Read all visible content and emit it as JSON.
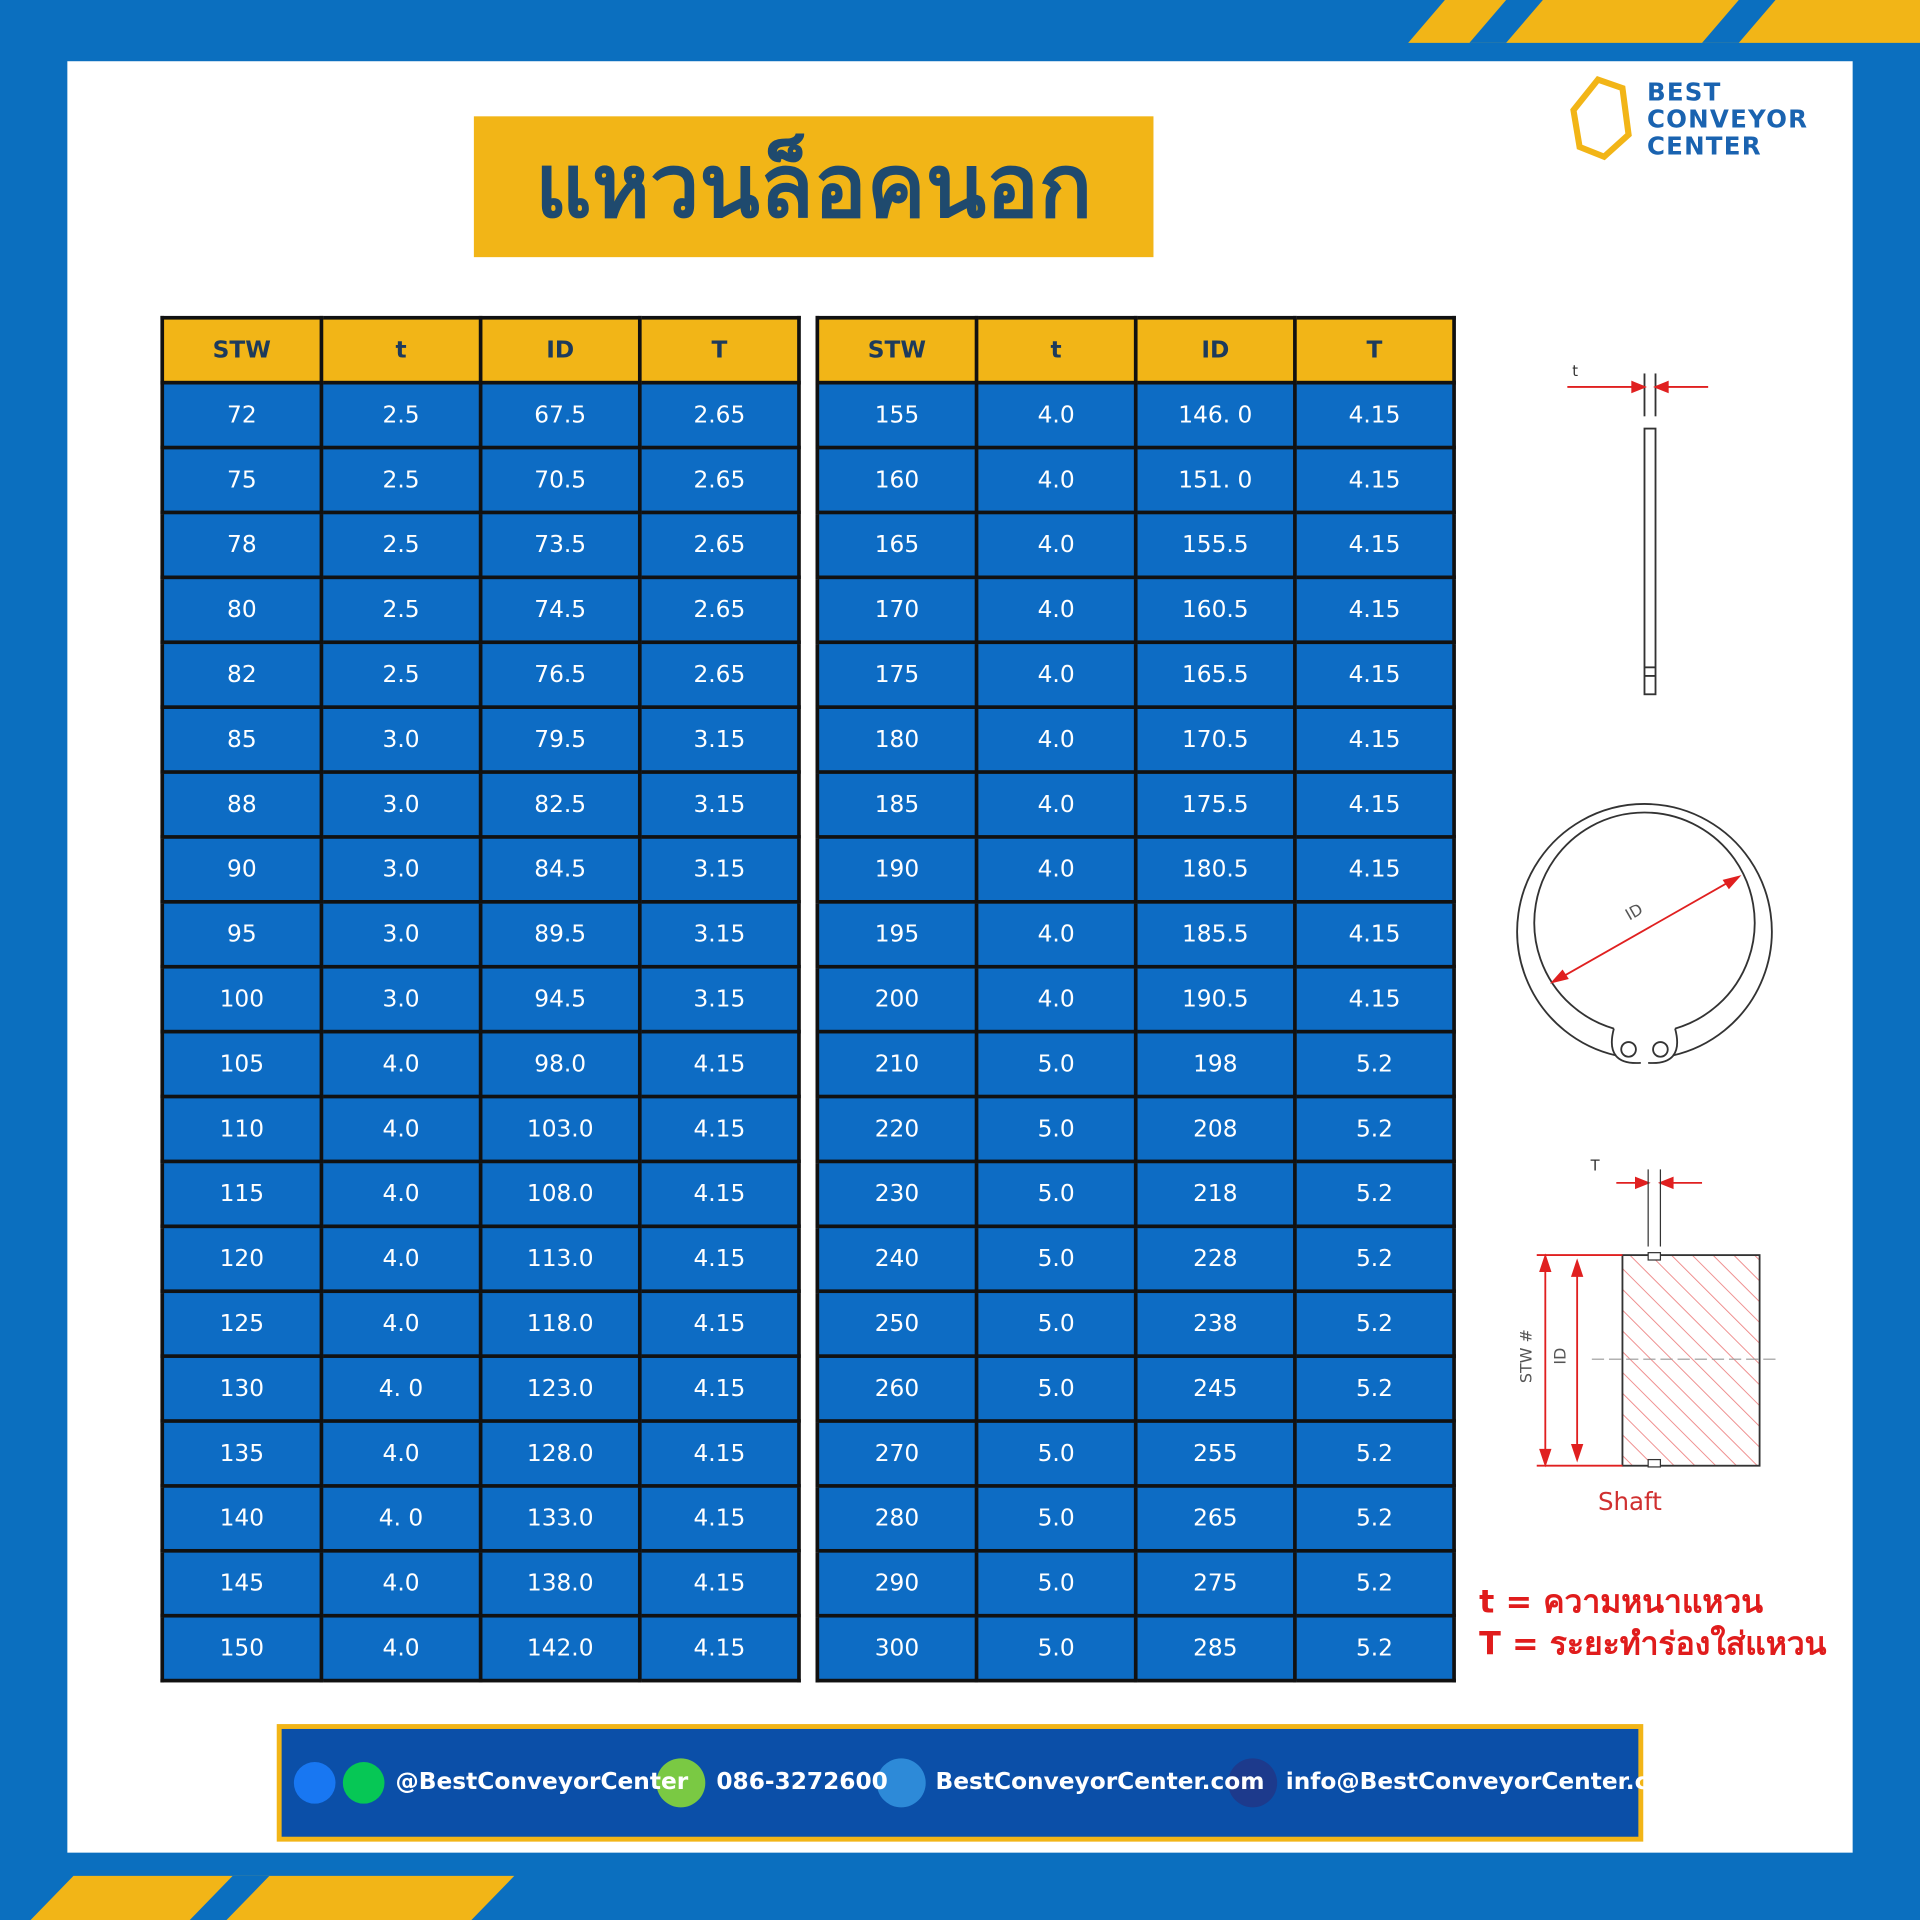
{
  "header": {
    "title": "แหวนล็อคนอก"
  },
  "logo": {
    "lines": [
      "BEST",
      "CONVEYOR",
      "CENTER"
    ]
  },
  "tables": [
    {
      "header": [
        "STW",
        "t",
        "ID",
        "T"
      ],
      "rows": [
        [
          "72",
          "2.5",
          "67.5",
          "2.65"
        ],
        [
          "75",
          "2.5",
          "70.5",
          "2.65"
        ],
        [
          "78",
          "2.5",
          "73.5",
          "2.65"
        ],
        [
          "80",
          "2.5",
          "74.5",
          "2.65"
        ],
        [
          "82",
          "2.5",
          "76.5",
          "2.65"
        ],
        [
          "85",
          "3.0",
          "79.5",
          "3.15"
        ],
        [
          "88",
          "3.0",
          "82.5",
          "3.15"
        ],
        [
          "90",
          "3.0",
          "84.5",
          "3.15"
        ],
        [
          "95",
          "3.0",
          "89.5",
          "3.15"
        ],
        [
          "100",
          "3.0",
          "94.5",
          "3.15"
        ],
        [
          "105",
          "4.0",
          "98.0",
          "4.15"
        ],
        [
          "110",
          "4.0",
          "103.0",
          "4.15"
        ],
        [
          "115",
          "4.0",
          "108.0",
          "4.15"
        ],
        [
          "120",
          "4.0",
          "113.0",
          "4.15"
        ],
        [
          "125",
          "4.0",
          "118.0",
          "4.15"
        ],
        [
          "130",
          "4. 0",
          "123.0",
          "4.15"
        ],
        [
          "135",
          "4.0",
          "128.0",
          "4.15"
        ],
        [
          "140",
          "4. 0",
          "133.0",
          "4.15"
        ],
        [
          "145",
          "4.0",
          "138.0",
          "4.15"
        ],
        [
          "150",
          "4.0",
          "142.0",
          "4.15"
        ]
      ]
    },
    {
      "header": [
        "STW",
        "t",
        "ID",
        "T"
      ],
      "rows": [
        [
          "155",
          "4.0",
          "146. 0",
          "4.15"
        ],
        [
          "160",
          "4.0",
          "151. 0",
          "4.15"
        ],
        [
          "165",
          "4.0",
          "155.5",
          "4.15"
        ],
        [
          "170",
          "4.0",
          "160.5",
          "4.15"
        ],
        [
          "175",
          "4.0",
          "165.5",
          "4.15"
        ],
        [
          "180",
          "4.0",
          "170.5",
          "4.15"
        ],
        [
          "185",
          "4.0",
          "175.5",
          "4.15"
        ],
        [
          "190",
          "4.0",
          "180.5",
          "4.15"
        ],
        [
          "195",
          "4.0",
          "185.5",
          "4.15"
        ],
        [
          "200",
          "4.0",
          "190.5",
          "4.15"
        ],
        [
          "210",
          "5.0",
          "198",
          "5.2"
        ],
        [
          "220",
          "5.0",
          "208",
          "5.2"
        ],
        [
          "230",
          "5.0",
          "218",
          "5.2"
        ],
        [
          "240",
          "5.0",
          "228",
          "5.2"
        ],
        [
          "250",
          "5.0",
          "238",
          "5.2"
        ],
        [
          "260",
          "5.0",
          "245",
          "5.2"
        ],
        [
          "270",
          "5.0",
          "255",
          "5.2"
        ],
        [
          "280",
          "5.0",
          "265",
          "5.2"
        ],
        [
          "290",
          "5.0",
          "275",
          "5.2"
        ],
        [
          "300",
          "5.0",
          "285",
          "5.2"
        ]
      ]
    }
  ],
  "diagram": {
    "thickness_label": "t",
    "id_label": "ID",
    "groove_label": "T",
    "stw_label": "STW #",
    "shaft_id_label": "ID",
    "shaft_label": "Shaft"
  },
  "notes": [
    "t = ความหนาแหวน",
    "T = ระยะทำร่องใส่แหวน"
  ],
  "footer": {
    "social": "@BestConveyorCenter",
    "phone": "086-3272600",
    "website": "BestConveyorCenter.com",
    "email": "info@BestConveyorCenter.com"
  }
}
